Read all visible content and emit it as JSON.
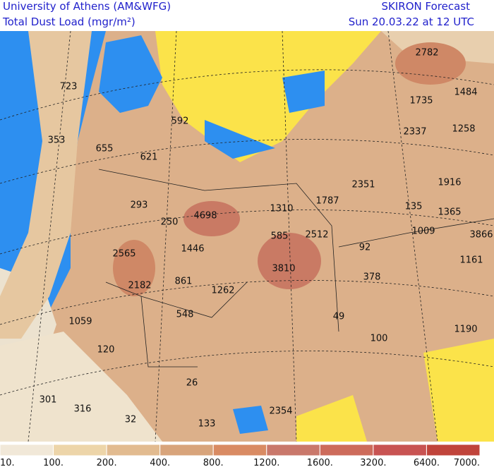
{
  "header": {
    "institution": "University of Athens (AM&WFG)",
    "product": "Total Dust Load (mgr/m²)",
    "forecast": "SKIRON Forecast",
    "valid_time": "Sun 20.03.22 at 12 UTC"
  },
  "map_labels": [
    "2782",
    "723",
    "1484",
    "1735",
    "353",
    "655",
    "592",
    "2337",
    "1258",
    "621",
    "2351",
    "1916",
    "293",
    "4698",
    "1310",
    "1787",
    "135",
    "1365",
    "250",
    "1009",
    "3866",
    "585",
    "2512",
    "92",
    "2565",
    "1446",
    "1161",
    "3810",
    "378",
    "2182",
    "861",
    "1262",
    "548",
    "49",
    "1059",
    "100",
    "1190",
    "120",
    "26",
    "301",
    "316",
    "2354",
    "32",
    "133"
  ],
  "colorbar": {
    "labels": [
      "10.",
      "100.",
      "200.",
      "400.",
      "800.",
      "1200.",
      "1600.",
      "3200.",
      "6400.",
      "7000."
    ],
    "colors": [
      "#f1e8d8",
      "#edd5a9",
      "#e2bb90",
      "#d8a47b",
      "#d98b63",
      "#c9786b",
      "#cd6b5b",
      "#c85352",
      "#c0443b"
    ]
  }
}
